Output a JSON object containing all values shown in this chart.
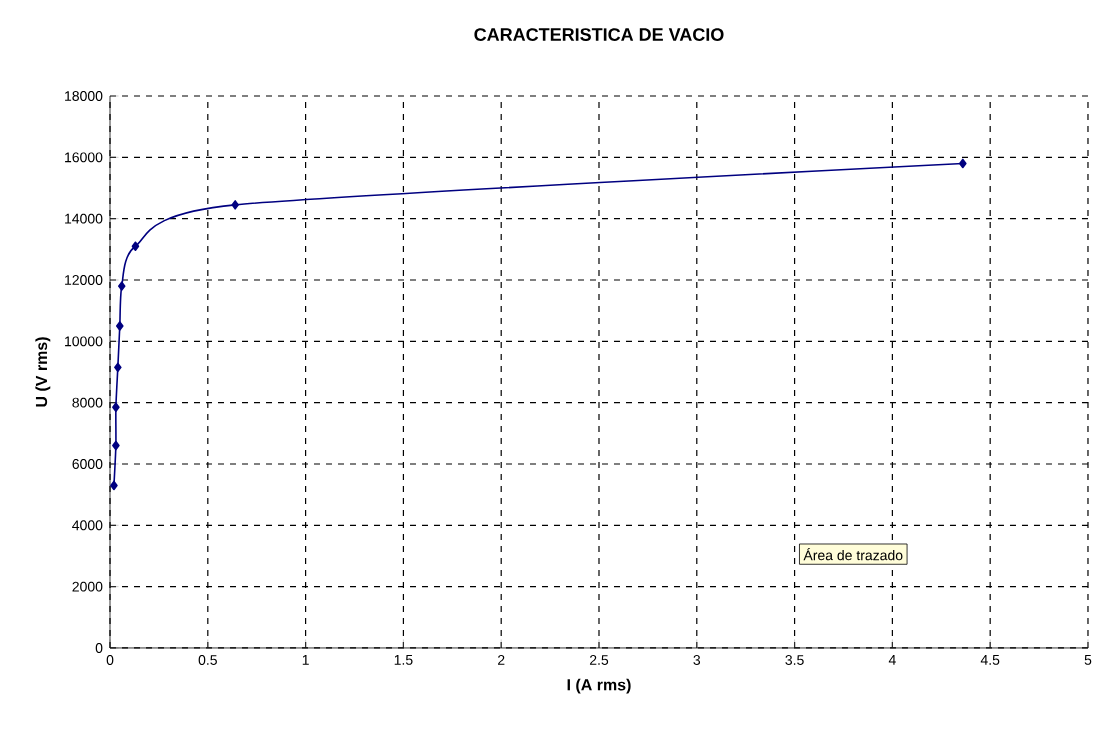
{
  "chart_data": {
    "type": "line",
    "title": "CARACTERISTICA DE VACIO",
    "xlabel": "I (A rms)",
    "ylabel": "U (V rms)",
    "x": [
      0.02,
      0.03,
      0.03,
      0.04,
      0.05,
      0.06,
      0.13,
      0.64,
      4.36
    ],
    "series": [
      {
        "color": "#000080",
        "values": [
          5300,
          6600,
          7850,
          9150,
          10500,
          11800,
          13100,
          14450,
          15800
        ]
      }
    ],
    "xlim": [
      0,
      5
    ],
    "xticks": [
      0,
      0.5,
      1,
      1.5,
      2,
      2.5,
      3,
      3.5,
      4,
      4.5,
      5
    ],
    "ylim": [
      0,
      18000
    ],
    "yticks": [
      0,
      2000,
      4000,
      6000,
      8000,
      10000,
      12000,
      14000,
      16000,
      18000
    ],
    "grid": true,
    "marker": "diamond",
    "line_style": "solid",
    "annotations": [
      "Área de trazado"
    ]
  }
}
